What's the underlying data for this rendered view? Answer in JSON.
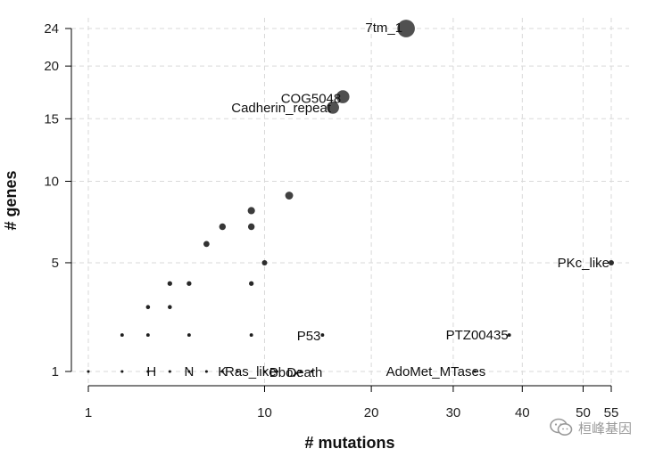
{
  "chart_data": {
    "type": "scatter",
    "xlabel": "# mutations",
    "ylabel": "# genes",
    "x_tick_labels": [
      "1",
      "10",
      "20",
      "30",
      "40",
      "50",
      "55"
    ],
    "y_tick_labels": [
      "1",
      "5",
      "10",
      "15",
      "20",
      "24"
    ],
    "grid": true,
    "points": [
      {
        "x": 24,
        "y": 24,
        "label": "7tm_1"
      },
      {
        "x": 17,
        "y": 17,
        "label": "COG5048"
      },
      {
        "x": 16,
        "y": 16,
        "label": "Cadherin_repeat"
      },
      {
        "x": 55,
        "y": 5,
        "label": "PKc_like"
      },
      {
        "x": 38,
        "y": 2,
        "label": "PTZ00435"
      },
      {
        "x": 15,
        "y": 2,
        "label": "P53"
      },
      {
        "x": 14,
        "y": 1,
        "label": "Death"
      },
      {
        "x": 13,
        "y": 1,
        "label": "Bbox"
      },
      {
        "x": 33,
        "y": 1,
        "label": "AdoMet_MTases"
      },
      {
        "x": 11,
        "y": 1,
        "label": "Ras_like"
      },
      {
        "x": 7,
        "y": 1,
        "label": "K"
      },
      {
        "x": 5,
        "y": 1,
        "label": "N"
      },
      {
        "x": 3,
        "y": 1,
        "label": "H"
      },
      {
        "x": 12,
        "y": 9,
        "label": ""
      },
      {
        "x": 9,
        "y": 8,
        "label": ""
      },
      {
        "x": 9,
        "y": 7,
        "label": ""
      },
      {
        "x": 7,
        "y": 7,
        "label": ""
      },
      {
        "x": 6,
        "y": 6,
        "label": ""
      },
      {
        "x": 10,
        "y": 5,
        "label": ""
      },
      {
        "x": 5,
        "y": 4,
        "label": ""
      },
      {
        "x": 4,
        "y": 4,
        "label": ""
      },
      {
        "x": 9,
        "y": 4,
        "label": ""
      },
      {
        "x": 4,
        "y": 3,
        "label": ""
      },
      {
        "x": 3,
        "y": 3,
        "label": ""
      },
      {
        "x": 2,
        "y": 2,
        "label": ""
      },
      {
        "x": 3,
        "y": 2,
        "label": ""
      },
      {
        "x": 5,
        "y": 2,
        "label": ""
      },
      {
        "x": 9,
        "y": 2,
        "label": ""
      },
      {
        "x": 1,
        "y": 1,
        "label": ""
      },
      {
        "x": 2,
        "y": 1,
        "label": ""
      },
      {
        "x": 4,
        "y": 1,
        "label": ""
      },
      {
        "x": 6,
        "y": 1,
        "label": ""
      },
      {
        "x": 8,
        "y": 1,
        "label": ""
      },
      {
        "x": 10,
        "y": 1,
        "label": ""
      }
    ]
  },
  "watermark": {
    "text": "桓峰基因",
    "icon": "wechat-icon"
  }
}
